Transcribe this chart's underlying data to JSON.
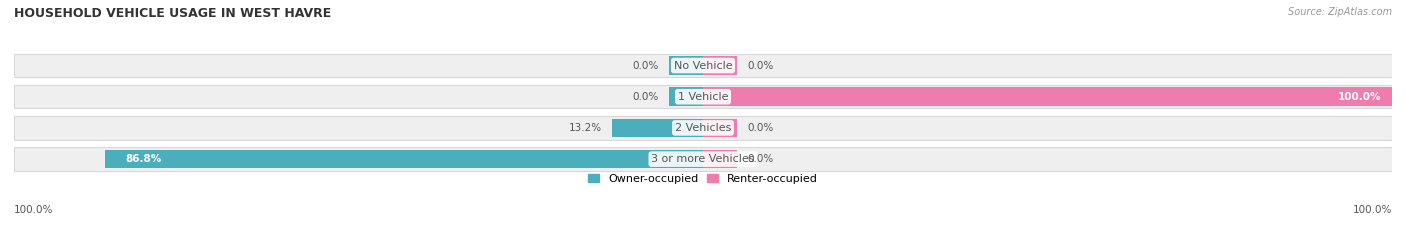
{
  "title": "HOUSEHOLD VEHICLE USAGE IN WEST HAVRE",
  "source": "Source: ZipAtlas.com",
  "categories": [
    "No Vehicle",
    "1 Vehicle",
    "2 Vehicles",
    "3 or more Vehicles"
  ],
  "owner_values": [
    0.0,
    0.0,
    13.2,
    86.8
  ],
  "renter_values": [
    0.0,
    100.0,
    0.0,
    0.0
  ],
  "owner_color": "#4BAEBC",
  "renter_color": "#F07BAD",
  "owner_label": "Owner-occupied",
  "renter_label": "Renter-occupied",
  "bar_bg_color": "#EFEFEF",
  "bar_shadow_color": "#D8D8D8",
  "label_color": "#555555",
  "title_color": "#333333",
  "source_color": "#999999",
  "x_left_label": "100.0%",
  "x_right_label": "100.0%",
  "figsize": [
    14.06,
    2.34
  ],
  "dpi": 100,
  "max_val": 100.0,
  "stub_val": 5.0
}
